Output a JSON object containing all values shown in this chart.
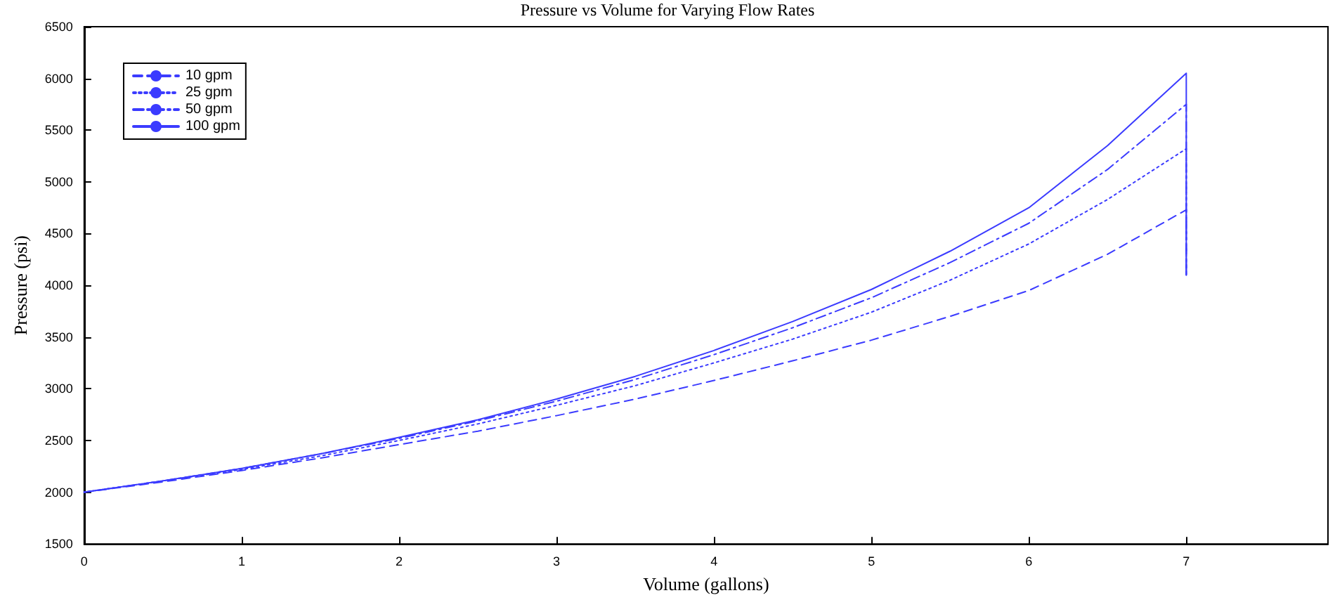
{
  "chart_data": {
    "type": "line",
    "title": "Pressure vs Volume for Varying Flow Rates",
    "xlabel": "Volume (gallons)",
    "ylabel": "Pressure (psi)",
    "x": [
      0,
      0.5,
      1,
      1.5,
      2,
      2.5,
      3,
      3.5,
      4,
      4.5,
      5,
      5.5,
      6,
      6.5,
      7,
      7
    ],
    "series": [
      {
        "name": "10 gpm",
        "color": "#3b3bff",
        "line_style": "dashed",
        "values": [
          2000,
          2100,
          2210,
          2330,
          2460,
          2590,
          2740,
          2900,
          3080,
          3270,
          3470,
          3700,
          3950,
          4300,
          4730,
          4100
        ]
      },
      {
        "name": "25 gpm",
        "color": "#3b3bff",
        "line_style": "dotted",
        "values": [
          2000,
          2110,
          2220,
          2350,
          2500,
          2660,
          2840,
          3030,
          3250,
          3480,
          3740,
          4050,
          4400,
          4830,
          5320,
          4100
        ]
      },
      {
        "name": "50 gpm",
        "color": "#3b3bff",
        "line_style": "dashdot",
        "values": [
          2000,
          2110,
          2230,
          2370,
          2520,
          2690,
          2880,
          3090,
          3330,
          3590,
          3880,
          4220,
          4600,
          5120,
          5750,
          4100
        ]
      },
      {
        "name": "100 gpm",
        "color": "#3b3bff",
        "line_style": "solid",
        "values": [
          2000,
          2110,
          2230,
          2370,
          2530,
          2700,
          2900,
          3120,
          3370,
          3650,
          3960,
          4330,
          4750,
          5350,
          6050,
          4100
        ]
      }
    ],
    "xlim": [
      0,
      7.9
    ],
    "xticks": [
      0,
      1,
      2,
      3,
      4,
      5,
      6,
      7
    ],
    "ylim": [
      1500,
      6500
    ],
    "yticks": [
      1500,
      2000,
      2500,
      3000,
      3500,
      4000,
      4500,
      5000,
      5500,
      6000,
      6500
    ],
    "grid": false,
    "legend": "top left",
    "marker": "none"
  }
}
